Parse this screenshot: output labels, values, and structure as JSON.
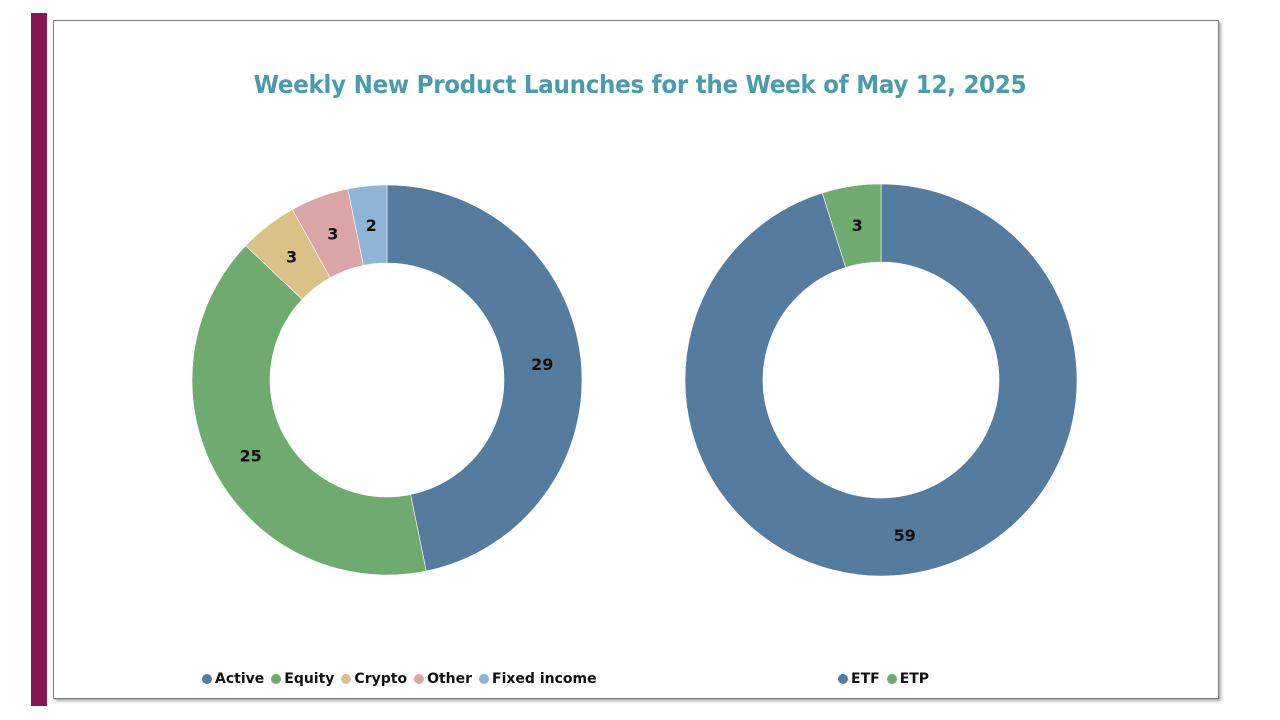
{
  "page": {
    "title": "Weekly New Product Launches for the Week of May 12, 2025",
    "accent_color": "#861652",
    "title_color": "#4a9bae"
  },
  "chart_data": [
    {
      "type": "pie",
      "variant": "donut",
      "name": "by-category",
      "categories": [
        "Active",
        "Equity",
        "Crypto",
        "Other",
        "Fixed income"
      ],
      "values": [
        29,
        25,
        3,
        3,
        2
      ],
      "colors": [
        "#557b9e",
        "#6fab6e",
        "#d9c187",
        "#d9a5a5",
        "#8eb4d6"
      ],
      "data_labels": [
        "29",
        "25",
        "3",
        "3",
        "2"
      ],
      "legend_position": "bottom",
      "start_angle": "top-clockwise"
    },
    {
      "type": "pie",
      "variant": "donut",
      "name": "by-structure",
      "categories": [
        "ETF",
        "ETP"
      ],
      "values": [
        59,
        3
      ],
      "colors": [
        "#557b9e",
        "#6fab6e"
      ],
      "data_labels": [
        "59",
        "3"
      ],
      "legend_position": "bottom",
      "start_angle": "top-clockwise"
    }
  ]
}
